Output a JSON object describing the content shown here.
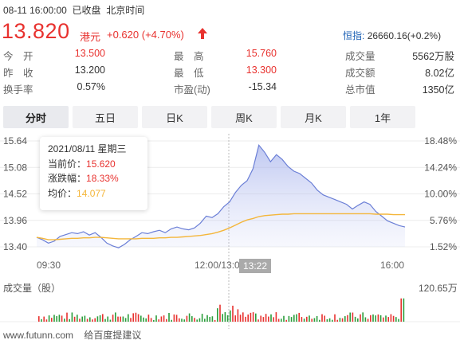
{
  "header": {
    "datetime": "08-11 16:00:00",
    "status": "已收盘",
    "timezone": "北京时间",
    "price": "13.820",
    "currency": "港元",
    "change": "+0.620 (+4.70%)",
    "index_name": "恒指:",
    "index_value": "26660.16(+0.2%)"
  },
  "stats": {
    "open_label": "今　开",
    "open_value": "13.500",
    "prev_label": "昨　收",
    "prev_value": "13.200",
    "turnover_rate_label": "换手率",
    "turnover_rate_value": "0.57%",
    "high_label": "最　高",
    "high_value": "15.760",
    "low_label": "最　低",
    "low_value": "13.300",
    "pe_label": "市盈(动)",
    "pe_value": "-15.34",
    "volume_label": "成交量",
    "volume_value": "5562万股",
    "amount_label": "成交额",
    "amount_value": "8.02亿",
    "mcap_label": "总市值",
    "mcap_value": "1350亿"
  },
  "tabs": [
    "分时",
    "五日",
    "日K",
    "周K",
    "月K",
    "1年"
  ],
  "active_tab": 0,
  "tooltip": {
    "date": "2021/08/11 星期三",
    "price_label": "当前价：",
    "price_value": "15.620",
    "change_label": "涨跌幅：",
    "change_value": "18.33%",
    "avg_label": "均价：",
    "avg_value": "14.077"
  },
  "chart_data": {
    "type": "line",
    "y_ticks_left": [
      "15.64",
      "15.08",
      "14.52",
      "13.96",
      "13.40"
    ],
    "y_ticks_right": [
      "18.48%",
      "14.24%",
      "10.00%",
      "5.76%",
      "1.52%"
    ],
    "ylim": [
      13.4,
      15.64
    ],
    "x_ticks": [
      "09:30",
      "12:00/13:00",
      "16:00"
    ],
    "crosshair_label": "13:22",
    "series": [
      {
        "values": [
          13.6,
          13.55,
          13.48,
          13.52,
          13.62,
          13.66,
          13.7,
          13.68,
          13.72,
          13.65,
          13.7,
          13.6,
          13.48,
          13.42,
          13.38,
          13.45,
          13.55,
          13.62,
          13.7,
          13.68,
          13.72,
          13.75,
          13.7,
          13.78,
          13.82,
          13.78,
          13.76,
          13.8,
          13.9,
          14.05,
          14.02,
          14.1,
          14.25,
          14.35,
          14.55,
          14.7,
          14.8,
          15.05,
          15.55,
          15.4,
          15.2,
          15.35,
          15.25,
          15.1,
          15.0,
          14.95,
          14.85,
          14.75,
          14.6,
          14.5,
          14.45,
          14.4,
          14.35,
          14.3,
          14.2,
          14.28,
          14.35,
          14.3,
          14.15,
          14.05,
          13.95,
          13.9,
          13.85,
          13.82
        ]
      },
      {
        "values": [
          13.6,
          13.58,
          13.55,
          13.55,
          13.56,
          13.57,
          13.58,
          13.58,
          13.59,
          13.59,
          13.6,
          13.6,
          13.59,
          13.58,
          13.57,
          13.57,
          13.57,
          13.57,
          13.58,
          13.58,
          13.58,
          13.59,
          13.59,
          13.6,
          13.6,
          13.61,
          13.62,
          13.63,
          13.64,
          13.66,
          13.68,
          13.71,
          13.75,
          13.8,
          13.86,
          13.92,
          13.97,
          14.0,
          14.04,
          14.06,
          14.07,
          14.08,
          14.09,
          14.09,
          14.1,
          14.1,
          14.1,
          14.1,
          14.1,
          14.1,
          14.1,
          14.1,
          14.1,
          14.1,
          14.1,
          14.1,
          14.1,
          14.1,
          14.09,
          14.09,
          14.09,
          14.08,
          14.08,
          14.08
        ]
      }
    ],
    "volume_max_label": "120.65万",
    "volume_title": "成交量（股）"
  },
  "footer": {
    "site": "www.futunn.com",
    "feedback": "给百度提建议"
  },
  "colors": {
    "up": "#e8322f",
    "down": "#2a9d3a",
    "price_line": "#6b7fd6",
    "avg_line": "#f4b63a"
  }
}
